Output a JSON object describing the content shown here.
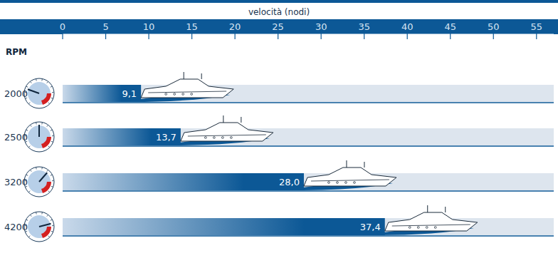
{
  "chart_data": {
    "type": "bar",
    "orientation": "horizontal",
    "x_label": "velocità (nodi)",
    "y_label": "RPM",
    "categories": [
      "2000",
      "2500",
      "3200",
      "4200"
    ],
    "values": [
      9.1,
      13.7,
      28.0,
      37.4
    ],
    "value_labels": [
      "9,1",
      "13,7",
      "28,0",
      "37,4"
    ],
    "data_labels": true,
    "color": "#0c5896",
    "xlim": [
      0,
      57
    ],
    "xticks": [
      0,
      5,
      10,
      15,
      20,
      25,
      30,
      35,
      40,
      45,
      50,
      55
    ],
    "grid": false
  }
}
